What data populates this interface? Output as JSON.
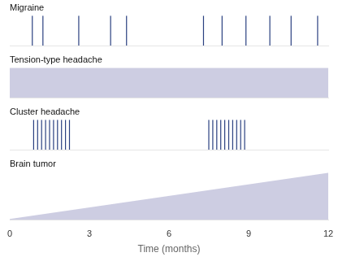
{
  "chart_data": [
    {
      "type": "events",
      "title": "Migraine",
      "x": [
        0.85,
        1.25,
        2.6,
        3.8,
        4.4,
        7.3,
        8.0,
        8.9,
        9.8,
        10.6,
        11.6
      ],
      "color": "#2a4080",
      "xlim": [
        0,
        12
      ],
      "ylim": [
        0,
        1
      ],
      "grid": false,
      "tick_labels": false
    },
    {
      "type": "area",
      "title": "Tension-type headache",
      "x": [
        0,
        12
      ],
      "values": [
        1.0,
        1.0
      ],
      "color": "#8888bb",
      "xlim": [
        0,
        12
      ],
      "ylim": [
        0,
        1
      ],
      "grid": false,
      "tick_labels": false
    },
    {
      "type": "events",
      "title": "Cluster headache",
      "x": [
        0.9,
        1.05,
        1.2,
        1.35,
        1.5,
        1.65,
        1.8,
        1.95,
        2.1,
        2.25,
        7.5,
        7.65,
        7.8,
        7.95,
        8.1,
        8.25,
        8.4,
        8.55,
        8.7,
        8.85
      ],
      "color": "#2a4080",
      "xlim": [
        0,
        12
      ],
      "ylim": [
        0,
        1
      ],
      "grid": false,
      "tick_labels": false
    },
    {
      "type": "area",
      "title": "Brain tumor",
      "x": [
        0,
        12
      ],
      "values": [
        0.02,
        0.98
      ],
      "color": "#8888bb",
      "xlim": [
        0,
        12
      ],
      "ylim": [
        0,
        1
      ],
      "grid": false,
      "tick_labels": "x",
      "xticks": [
        0,
        3,
        6,
        9,
        12
      ],
      "xlabel": "Time (months)"
    }
  ]
}
